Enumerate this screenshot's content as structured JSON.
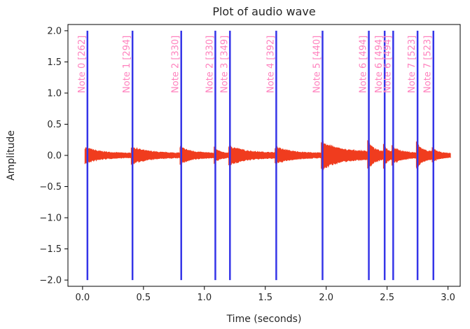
{
  "chart_data": {
    "type": "line",
    "title": "Plot of audio wave",
    "xlabel": "Time (seconds)",
    "ylabel": "Amplitude",
    "xlim": [
      -0.12,
      3.1
    ],
    "ylim": [
      -2.1,
      2.1
    ],
    "xticks": [
      0.0,
      0.5,
      1.0,
      1.5,
      2.0,
      2.5,
      3.0
    ],
    "xtick_labels": [
      "0.0",
      "0.5",
      "1.0",
      "1.5",
      "2.0",
      "2.5",
      "3.0"
    ],
    "yticks": [
      2.0,
      1.5,
      1.0,
      0.5,
      0.0,
      -0.5,
      -1.0,
      -1.5,
      -2.0
    ],
    "ytick_labels": [
      "2.0",
      "1.5",
      "1.0",
      "0.5",
      "0.0",
      "−0.5",
      "−1.0",
      "−1.5",
      "−2.0"
    ],
    "grid": false,
    "colors": {
      "wave": "#f03c1e",
      "note_line": "#3535e8",
      "note_label": "#ff82be"
    },
    "notes": [
      {
        "time": 0.04,
        "label": "Note 0 [262]"
      },
      {
        "time": 0.41,
        "label": "Note 1 [294]"
      },
      {
        "time": 0.81,
        "label": "Note 2 [330]"
      },
      {
        "time": 1.09,
        "label": "Note 2 [330]"
      },
      {
        "time": 1.21,
        "label": "Note 3 [349]"
      },
      {
        "time": 1.59,
        "label": "Note 4 [392]"
      },
      {
        "time": 1.97,
        "label": "Note 5 [440]"
      },
      {
        "time": 2.35,
        "label": "Note 6 [494]"
      },
      {
        "time": 2.48,
        "label": "Note 6 [494]"
      },
      {
        "time": 2.55,
        "label": "Note 6 [494]"
      },
      {
        "time": 2.75,
        "label": "Note 7 [523]"
      },
      {
        "time": 2.88,
        "label": "Note 7 [523]"
      }
    ],
    "note_line_range": [
      -2.0,
      2.0
    ],
    "wave_segments": [
      {
        "start": 0.02,
        "end": 0.41,
        "peak": 0.12
      },
      {
        "start": 0.4,
        "end": 0.81,
        "peak": 0.13
      },
      {
        "start": 0.8,
        "end": 1.09,
        "peak": 0.13
      },
      {
        "start": 1.08,
        "end": 1.21,
        "peak": 0.12
      },
      {
        "start": 1.2,
        "end": 1.59,
        "peak": 0.15
      },
      {
        "start": 1.58,
        "end": 1.97,
        "peak": 0.13
      },
      {
        "start": 1.96,
        "end": 2.35,
        "peak": 0.22
      },
      {
        "start": 2.34,
        "end": 2.48,
        "peak": 0.22
      },
      {
        "start": 2.47,
        "end": 2.55,
        "peak": 0.2
      },
      {
        "start": 2.54,
        "end": 2.75,
        "peak": 0.14
      },
      {
        "start": 2.74,
        "end": 2.88,
        "peak": 0.2
      },
      {
        "start": 2.87,
        "end": 3.02,
        "peak": 0.11
      }
    ]
  }
}
